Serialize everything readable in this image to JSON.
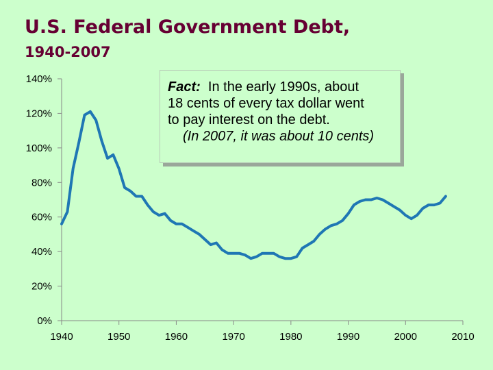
{
  "slide": {
    "title_line1": "U.S. Federal Government Debt,",
    "title_line2": "1940-2007"
  },
  "callout": {
    "label": "Fact:",
    "line1_rest": "In the early 1990s, about",
    "line2": "18 cents of every tax dollar went",
    "line3": "to pay interest on the debt.",
    "line4": "(In 2007, it was about 10 cents)"
  },
  "colors": {
    "line": "#1f77b4",
    "title": "#660033",
    "background": "#ccffcc"
  },
  "chart_data": {
    "type": "line",
    "title": "",
    "xlabel": "",
    "ylabel": "",
    "xlim": [
      1940,
      2010
    ],
    "ylim": [
      0,
      140
    ],
    "x_ticks": [
      1940,
      1950,
      1960,
      1970,
      1980,
      1990,
      2000,
      2010
    ],
    "y_ticks": [
      0,
      20,
      40,
      60,
      80,
      100,
      120,
      140
    ],
    "x_tick_labels": [
      "1940",
      "1950",
      "1960",
      "1970",
      "1980",
      "1990",
      "2000",
      "2010"
    ],
    "y_tick_labels": [
      "0%",
      "20%",
      "40%",
      "60%",
      "80%",
      "100%",
      "120%",
      "140%"
    ],
    "grid": false,
    "legend": "none",
    "series": [
      {
        "x": [
          1940,
          1941,
          1942,
          1943,
          1944,
          1945,
          1946,
          1947,
          1948,
          1949,
          1950,
          1951,
          1952,
          1953,
          1954,
          1955,
          1956,
          1957,
          1958,
          1959,
          1960,
          1961,
          1962,
          1963,
          1964,
          1965,
          1966,
          1967,
          1968,
          1969,
          1970,
          1971,
          1972,
          1973,
          1974,
          1975,
          1976,
          1977,
          1978,
          1979,
          1980,
          1981,
          1982,
          1983,
          1984,
          1985,
          1986,
          1987,
          1988,
          1989,
          1990,
          1991,
          1992,
          1993,
          1994,
          1995,
          1996,
          1997,
          1998,
          1999,
          2000,
          2001,
          2002,
          2003,
          2004,
          2005,
          2006,
          2007
        ],
        "y": [
          56,
          63,
          88,
          103,
          119,
          121,
          116,
          104,
          94,
          96,
          88,
          77,
          75,
          72,
          72,
          67,
          63,
          61,
          62,
          58,
          56,
          56,
          54,
          52,
          50,
          47,
          44,
          45,
          41,
          39,
          39,
          39,
          38,
          36,
          37,
          39,
          39,
          39,
          37,
          36,
          36,
          37,
          42,
          44,
          46,
          50,
          53,
          55,
          56,
          58,
          62,
          67,
          69,
          70,
          70,
          71,
          70,
          68,
          66,
          64,
          61,
          59,
          61,
          65,
          67,
          67,
          68,
          72
        ]
      }
    ]
  }
}
